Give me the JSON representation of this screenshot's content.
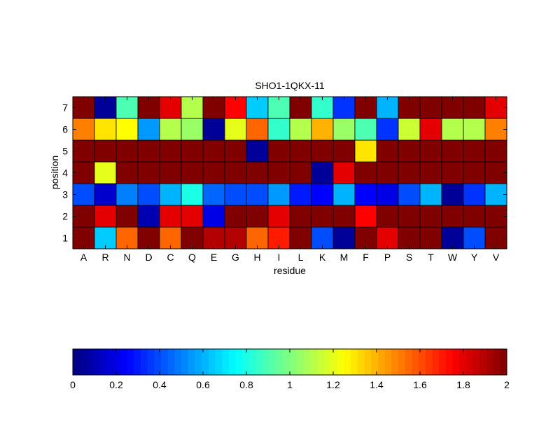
{
  "chart_data": {
    "type": "heatmap",
    "title": "SHO1-1QKX-11",
    "xlabel": "residue",
    "ylabel": "position",
    "x_categories": [
      "A",
      "R",
      "N",
      "D",
      "C",
      "Q",
      "E",
      "G",
      "H",
      "I",
      "L",
      "K",
      "M",
      "F",
      "P",
      "S",
      "T",
      "W",
      "Y",
      "V"
    ],
    "y_categories": [
      "1",
      "2",
      "3",
      "4",
      "5",
      "6",
      "7"
    ],
    "colormap": "jet",
    "clim": [
      0,
      2
    ],
    "colorbar": {
      "orientation": "horizontal",
      "placement": "bottom",
      "ticks": [
        0,
        0.2,
        0.4,
        0.6,
        0.8,
        1,
        1.2,
        1.4,
        1.6,
        1.8,
        2
      ],
      "tick_labels": [
        "0",
        "0.2",
        "0.4",
        "0.6",
        "0.8",
        "1",
        "1.2",
        "1.4",
        "1.6",
        "1.8",
        "2"
      ]
    },
    "values": [
      [
        2.0,
        0.65,
        1.55,
        2.0,
        1.55,
        2.0,
        1.9,
        1.9,
        1.55,
        1.7,
        2.0,
        0.4,
        0.05,
        2.0,
        1.8,
        2.0,
        2.0,
        0.05,
        0.4,
        2.0
      ],
      [
        2.0,
        1.8,
        2.0,
        0.1,
        1.8,
        1.8,
        0.2,
        2.0,
        2.0,
        1.8,
        2.0,
        2.0,
        2.0,
        1.75,
        2.0,
        2.0,
        2.0,
        2.0,
        2.0,
        2.0
      ],
      [
        0.4,
        0.15,
        0.5,
        0.4,
        0.6,
        0.8,
        0.45,
        0.4,
        0.4,
        0.55,
        0.3,
        0.25,
        0.6,
        0.25,
        0.2,
        0.4,
        0.6,
        0.05,
        0.35,
        0.6
      ],
      [
        2.0,
        1.2,
        2.0,
        2.0,
        2.0,
        2.0,
        2.0,
        2.0,
        2.0,
        2.0,
        2.0,
        0.05,
        1.8,
        2.0,
        2.0,
        2.0,
        2.0,
        2.0,
        2.0,
        2.0
      ],
      [
        2.0,
        2.0,
        2.0,
        2.0,
        2.0,
        2.0,
        2.0,
        2.0,
        0.05,
        2.0,
        2.0,
        2.0,
        2.0,
        1.3,
        2.0,
        2.0,
        2.0,
        2.0,
        2.0,
        2.0
      ],
      [
        1.5,
        1.3,
        1.25,
        0.55,
        1.1,
        1.05,
        0.05,
        1.2,
        1.55,
        0.85,
        1.1,
        1.4,
        1.05,
        0.9,
        0.35,
        1.15,
        1.8,
        1.1,
        1.1,
        1.5
      ],
      [
        2.0,
        0.05,
        0.9,
        2.0,
        1.8,
        1.1,
        2.0,
        1.75,
        0.65,
        0.9,
        2.0,
        0.85,
        0.35,
        2.0,
        0.6,
        2.0,
        2.0,
        2.0,
        2.0,
        1.8
      ]
    ]
  }
}
